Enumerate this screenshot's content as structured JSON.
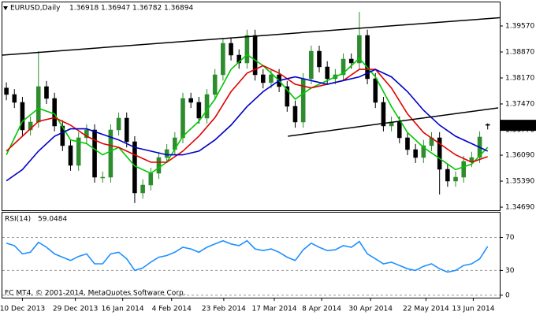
{
  "chart_data": [
    {
      "type": "candlestick",
      "title": "EURUSD,Daily",
      "bull_color": "#2e8b2e",
      "bear_color": "#000000",
      "open": [
        1.379,
        1.37724,
        1.37512,
        1.3677,
        1.36982,
        1.37937,
        1.37618,
        1.36876,
        1.36346,
        1.35815,
        1.36558,
        1.3677,
        1.35497,
        1.35497,
        1.3677,
        1.37088,
        1.36452,
        1.35073,
        1.35285,
        1.35603,
        1.36027,
        1.3624,
        1.36558,
        1.37618,
        1.37512,
        1.37088,
        1.37724,
        1.38255,
        1.39103,
        1.38785,
        1.38573,
        1.39315,
        1.38255,
        1.38043,
        1.38255,
        1.37937,
        1.37406,
        1.36982,
        1.38149,
        1.38891,
        1.38467,
        1.38149,
        1.38255,
        1.38679,
        1.38573,
        1.39315,
        1.38149,
        1.37512,
        1.36876,
        1.36982,
        1.36558,
        1.3624,
        1.36027,
        1.36346,
        1.36558,
        1.35709,
        1.35391,
        1.35497,
        1.35921,
        1.36027,
        1.36918
      ],
      "high": [
        1.3805,
        1.3787,
        1.3766,
        1.3713,
        1.3889,
        1.3809,
        1.3777,
        1.3703,
        1.365,
        1.3671,
        1.3692,
        1.3692,
        1.3565,
        1.3692,
        1.3724,
        1.3724,
        1.366,
        1.3544,
        1.3575,
        1.3618,
        1.3639,
        1.3671,
        1.3777,
        1.3777,
        1.3766,
        1.3787,
        1.3841,
        1.3925,
        1.3925,
        1.3894,
        1.3947,
        1.3947,
        1.3841,
        1.3841,
        1.3841,
        1.3809,
        1.3756,
        1.383,
        1.3904,
        1.3904,
        1.3862,
        1.3841,
        1.3883,
        1.3883,
        1.3995,
        1.3947,
        1.383,
        1.3766,
        1.3713,
        1.3713,
        1.3671,
        1.3639,
        1.365,
        1.3671,
        1.3671,
        1.3586,
        1.3565,
        1.3607,
        1.3618,
        1.3673,
        1.36947
      ],
      "low": [
        1.3757,
        1.3736,
        1.3662,
        1.3662,
        1.3683,
        1.3747,
        1.3673,
        1.362,
        1.3567,
        1.3567,
        1.3641,
        1.3535,
        1.3535,
        1.3535,
        1.3662,
        1.363,
        1.348,
        1.3492,
        1.3514,
        1.3545,
        1.3588,
        1.3609,
        1.3641,
        1.3736,
        1.3694,
        1.3694,
        1.3757,
        1.381,
        1.3864,
        1.3842,
        1.3842,
        1.381,
        1.3789,
        1.3789,
        1.3779,
        1.3726,
        1.3683,
        1.3683,
        1.38,
        1.3832,
        1.38,
        1.38,
        1.381,
        1.3842,
        1.3842,
        1.38,
        1.3736,
        1.3673,
        1.3673,
        1.3641,
        1.3609,
        1.3588,
        1.3588,
        1.362,
        1.3503,
        1.3524,
        1.3524,
        1.3535,
        1.3577,
        1.3588,
        1.36782
      ],
      "close": [
        1.37724,
        1.37512,
        1.3677,
        1.36982,
        1.37937,
        1.37618,
        1.36876,
        1.36346,
        1.35815,
        1.36558,
        1.3677,
        1.35497,
        1.35497,
        1.3677,
        1.37088,
        1.36452,
        1.35073,
        1.35285,
        1.35603,
        1.36027,
        1.3624,
        1.36558,
        1.37618,
        1.37512,
        1.37088,
        1.37724,
        1.38255,
        1.39103,
        1.38785,
        1.38573,
        1.39315,
        1.38255,
        1.38043,
        1.38255,
        1.37937,
        1.37406,
        1.36982,
        1.38149,
        1.38891,
        1.38467,
        1.38149,
        1.38255,
        1.38679,
        1.38573,
        1.39315,
        1.38149,
        1.37512,
        1.36876,
        1.36982,
        1.36558,
        1.3624,
        1.36027,
        1.36346,
        1.36558,
        1.35709,
        1.35391,
        1.35497,
        1.35921,
        1.36027,
        1.3658,
        1.36894
      ],
      "series": [
        {
          "color": "#00c800",
          "x": [
            0,
            2,
            4,
            6,
            8,
            10,
            12,
            14,
            16,
            18,
            20,
            22,
            24,
            26,
            28,
            30,
            32,
            34,
            36,
            38,
            40,
            42,
            44,
            46,
            48,
            50,
            52,
            54,
            56,
            58,
            60
          ],
          "values": [
            1.361,
            1.37,
            1.3735,
            1.372,
            1.365,
            1.364,
            1.361,
            1.363,
            1.358,
            1.356,
            1.359,
            1.366,
            1.37,
            1.376,
            1.384,
            1.388,
            1.385,
            1.381,
            1.376,
            1.379,
            1.381,
            1.383,
            1.387,
            1.382,
            1.374,
            1.367,
            1.363,
            1.36,
            1.357,
            1.3585,
            1.363
          ]
        },
        {
          "color": "#e00000",
          "x": [
            0,
            2,
            4,
            6,
            8,
            10,
            12,
            14,
            16,
            18,
            20,
            22,
            24,
            26,
            28,
            30,
            32,
            34,
            36,
            38,
            40,
            42,
            44,
            46,
            48,
            50,
            52,
            54,
            56,
            58,
            60
          ],
          "values": [
            1.362,
            1.366,
            1.37,
            1.371,
            1.369,
            1.366,
            1.364,
            1.363,
            1.361,
            1.359,
            1.359,
            1.362,
            1.366,
            1.371,
            1.378,
            1.383,
            1.385,
            1.383,
            1.38,
            1.379,
            1.38,
            1.381,
            1.384,
            1.384,
            1.379,
            1.372,
            1.367,
            1.364,
            1.361,
            1.359,
            1.3605
          ]
        },
        {
          "color": "#0000c8",
          "x": [
            0,
            2,
            4,
            6,
            8,
            10,
            12,
            14,
            16,
            18,
            20,
            22,
            24,
            26,
            28,
            30,
            32,
            34,
            36,
            38,
            40,
            42,
            44,
            46,
            48,
            50,
            52,
            54,
            56,
            58,
            60
          ],
          "values": [
            1.354,
            1.357,
            1.362,
            1.366,
            1.368,
            1.368,
            1.3665,
            1.365,
            1.363,
            1.362,
            1.361,
            1.361,
            1.362,
            1.365,
            1.369,
            1.374,
            1.378,
            1.381,
            1.382,
            1.381,
            1.38,
            1.381,
            1.382,
            1.384,
            1.382,
            1.378,
            1.373,
            1.369,
            1.366,
            1.364,
            1.362
          ]
        }
      ],
      "lines": [
        {
          "color": "#000000",
          "x": [
            -0.5,
            61.5
          ],
          "y": [
            1.38785,
            1.39793
          ]
        },
        {
          "color": "#000000",
          "x": [
            35.1,
            61.3
          ],
          "y": [
            1.366,
            1.37364
          ]
        }
      ],
      "xlim": [
        -0.5,
        61.5
      ],
      "xticks": [
        {
          "value": 2,
          "label": "10 Dec 2013"
        },
        {
          "value": 8.6,
          "label": "29 Dec 2013"
        },
        {
          "value": 14.5,
          "label": "16 Jan 2014"
        },
        {
          "value": 20.6,
          "label": "4 Feb 2014"
        },
        {
          "value": 27.1,
          "label": "23 Feb 2014"
        },
        {
          "value": 33.4,
          "label": "17 Mar 2014"
        },
        {
          "value": 39.3,
          "label": "8 Apr 2014"
        },
        {
          "value": 45.4,
          "label": "30 Apr 2014"
        },
        {
          "value": 52.3,
          "label": "22 May 2014"
        },
        {
          "value": 58.2,
          "label": "13 Jun 2014"
        }
      ],
      "ylim": [
        1.34606,
        1.40206
      ],
      "yticks": [
        {
          "value": 1.3957,
          "label": "1.39570"
        },
        {
          "value": 1.3887,
          "label": "1.38870"
        },
        {
          "value": 1.3817,
          "label": "1.38170"
        },
        {
          "value": 1.3747,
          "label": "1.37470"
        },
        {
          "value": 1.3677,
          "label": "1.36770"
        },
        {
          "value": 1.3609,
          "label": "1.36090"
        },
        {
          "value": 1.3539,
          "label": "1.35390"
        },
        {
          "value": 1.3469,
          "label": "1.34690"
        }
      ]
    },
    {
      "type": "line",
      "title": "RSI(14)",
      "color": "#1e90ff",
      "annotation": "FC MT4, © 2001-2014, MetaQuotes Software Corp.",
      "values": [
        63,
        60,
        50,
        52,
        64,
        58,
        50,
        46,
        42,
        47,
        50,
        38,
        38,
        50,
        52,
        44,
        30,
        33,
        40,
        46,
        48,
        52,
        58,
        56,
        52,
        58,
        62,
        66,
        62,
        60,
        66,
        56,
        54,
        56,
        52,
        46,
        42,
        55,
        63,
        58,
        54,
        55,
        60,
        58,
        65,
        50,
        44,
        38,
        40,
        36,
        32,
        30,
        35,
        38,
        32,
        28,
        30,
        36,
        38,
        44,
        59.0484
      ],
      "xlim": [
        -0.5,
        61.5
      ],
      "ylim": [
        -3,
        100
      ],
      "yticks": [
        0,
        30,
        70
      ]
    }
  ]
}
